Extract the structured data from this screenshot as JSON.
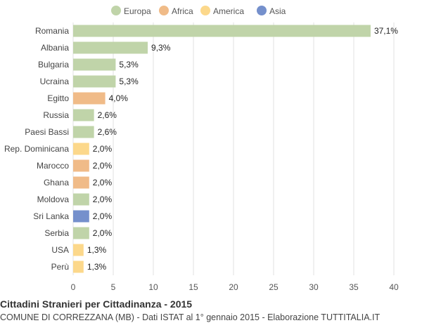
{
  "chart_data": {
    "type": "bar",
    "orientation": "horizontal",
    "title": "Cittadini Stranieri per Cittadinanza - 2015",
    "subtitle": "COMUNE DI CORREZZANA (MB) - Dati ISTAT al 1° gennaio 2015 - Elaborazione TUTTITALIA.IT",
    "xlim": [
      0,
      40
    ],
    "xticks": [
      0,
      5,
      10,
      15,
      20,
      25,
      30,
      35,
      40
    ],
    "grid": true,
    "legend_position": "top",
    "legend": [
      {
        "name": "Europa",
        "color": "#c0d4a9"
      },
      {
        "name": "Africa",
        "color": "#f0bb88"
      },
      {
        "name": "America",
        "color": "#fcd88b"
      },
      {
        "name": "Asia",
        "color": "#7590cc"
      }
    ],
    "categories": [
      "Romania",
      "Albania",
      "Bulgaria",
      "Ucraina",
      "Egitto",
      "Russia",
      "Paesi Bassi",
      "Rep. Dominicana",
      "Marocco",
      "Ghana",
      "Moldova",
      "Sri Lanka",
      "Serbia",
      "USA",
      "Perù"
    ],
    "values": [
      37.1,
      9.3,
      5.3,
      5.3,
      4.0,
      2.6,
      2.6,
      2.0,
      2.0,
      2.0,
      2.0,
      2.0,
      2.0,
      1.3,
      1.3
    ],
    "value_labels": [
      "37,1%",
      "9,3%",
      "5,3%",
      "5,3%",
      "4,0%",
      "2,6%",
      "2,6%",
      "2,0%",
      "2,0%",
      "2,0%",
      "2,0%",
      "2,0%",
      "2,0%",
      "1,3%",
      "1,3%"
    ],
    "groups": [
      "Europa",
      "Europa",
      "Europa",
      "Europa",
      "Africa",
      "Europa",
      "Europa",
      "America",
      "Africa",
      "Africa",
      "Europa",
      "Asia",
      "Europa",
      "America",
      "America"
    ]
  }
}
